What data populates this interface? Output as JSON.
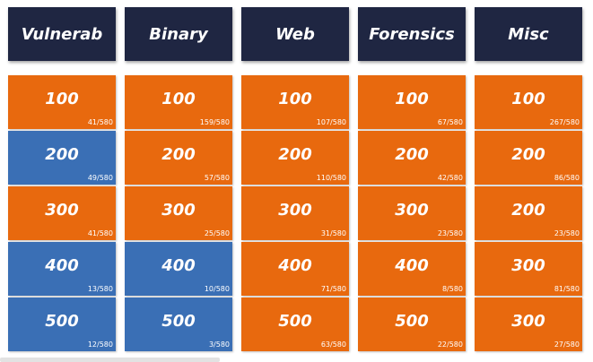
{
  "colors": {
    "header": "#1f2642",
    "unsolved": "#e8690e",
    "solved": "#3a6fb5"
  },
  "categories": [
    {
      "name": "Vulnerab",
      "tiles": [
        {
          "points": "100",
          "solves": "41/580",
          "state": "orange"
        },
        {
          "points": "200",
          "solves": "49/580",
          "state": "blue"
        },
        {
          "points": "300",
          "solves": "41/580",
          "state": "orange"
        },
        {
          "points": "400",
          "solves": "13/580",
          "state": "blue"
        },
        {
          "points": "500",
          "solves": "12/580",
          "state": "blue"
        }
      ]
    },
    {
      "name": "Binary",
      "tiles": [
        {
          "points": "100",
          "solves": "159/580",
          "state": "orange"
        },
        {
          "points": "200",
          "solves": "57/580",
          "state": "orange"
        },
        {
          "points": "300",
          "solves": "25/580",
          "state": "orange"
        },
        {
          "points": "400",
          "solves": "10/580",
          "state": "blue"
        },
        {
          "points": "500",
          "solves": "3/580",
          "state": "blue"
        }
      ]
    },
    {
      "name": "Web",
      "tiles": [
        {
          "points": "100",
          "solves": "107/580",
          "state": "orange"
        },
        {
          "points": "200",
          "solves": "110/580",
          "state": "orange"
        },
        {
          "points": "300",
          "solves": "31/580",
          "state": "orange"
        },
        {
          "points": "400",
          "solves": "71/580",
          "state": "orange"
        },
        {
          "points": "500",
          "solves": "63/580",
          "state": "orange"
        }
      ]
    },
    {
      "name": "Forensics",
      "tiles": [
        {
          "points": "100",
          "solves": "67/580",
          "state": "orange"
        },
        {
          "points": "200",
          "solves": "42/580",
          "state": "orange"
        },
        {
          "points": "300",
          "solves": "23/580",
          "state": "orange"
        },
        {
          "points": "400",
          "solves": "8/580",
          "state": "orange"
        },
        {
          "points": "500",
          "solves": "22/580",
          "state": "orange"
        }
      ]
    },
    {
      "name": "Misc",
      "tiles": [
        {
          "points": "100",
          "solves": "267/580",
          "state": "orange"
        },
        {
          "points": "200",
          "solves": "86/580",
          "state": "orange"
        },
        {
          "points": "200",
          "solves": "23/580",
          "state": "orange"
        },
        {
          "points": "300",
          "solves": "81/580",
          "state": "orange"
        },
        {
          "points": "300",
          "solves": "27/580",
          "state": "orange"
        }
      ]
    }
  ]
}
